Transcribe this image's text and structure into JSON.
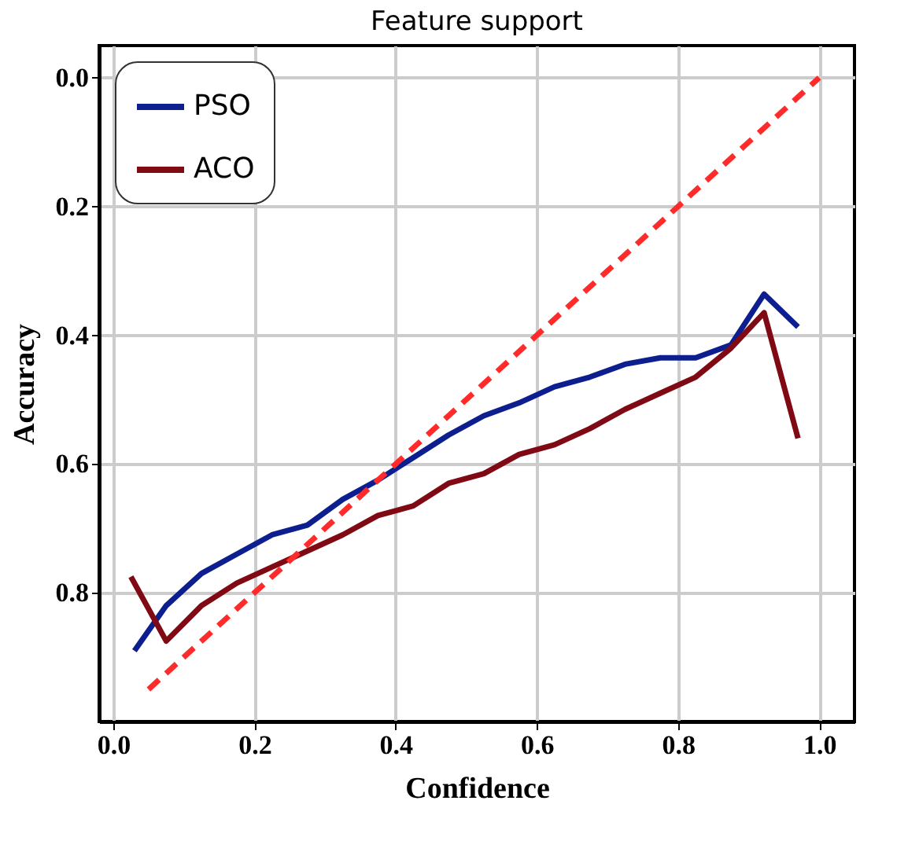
{
  "chart_data": {
    "type": "line",
    "title": "Feature support",
    "xlabel": "Confidence",
    "ylabel": "Accuracy",
    "xlim": [
      -0.02,
      1.05
    ],
    "ylim": [
      1.0,
      -0.05
    ],
    "xticks": [
      {
        "value": 0,
        "label": "0.0"
      },
      0.2,
      0.4,
      0.6,
      0.8,
      {
        "value": 1,
        "label": "1.0"
      }
    ],
    "yticks": [
      {
        "value": 0,
        "label": "0.0"
      },
      0.2,
      0.4,
      0.6,
      0.8
    ],
    "grid": true,
    "legend": "top left",
    "series": [
      {
        "name": "PSO",
        "color": "#0d1f8f",
        "line_style": "solid",
        "x": [
          0.03,
          0.075,
          0.125,
          0.175,
          0.225,
          0.275,
          0.325,
          0.375,
          0.425,
          0.475,
          0.525,
          0.575,
          0.625,
          0.675,
          0.725,
          0.775,
          0.825,
          0.875,
          0.922,
          0.97
        ],
        "values": [
          0.89,
          0.82,
          0.77,
          0.74,
          0.71,
          0.695,
          0.655,
          0.625,
          0.59,
          0.555,
          0.525,
          0.505,
          0.48,
          0.465,
          0.445,
          0.435,
          0.435,
          0.415,
          0.336,
          0.387
        ]
      },
      {
        "name": "ACO",
        "color": "#800a14",
        "line_style": "solid",
        "x": [
          0.025,
          0.075,
          0.125,
          0.175,
          0.225,
          0.275,
          0.325,
          0.375,
          0.425,
          0.475,
          0.525,
          0.575,
          0.625,
          0.675,
          0.725,
          0.775,
          0.825,
          0.875,
          0.922,
          0.97
        ],
        "values": [
          0.775,
          0.875,
          0.82,
          0.785,
          0.76,
          0.735,
          0.71,
          0.68,
          0.665,
          0.63,
          0.615,
          0.585,
          0.57,
          0.545,
          0.515,
          0.49,
          0.465,
          0.42,
          0.365,
          0.56
        ]
      },
      {
        "color": "#ff2a2a",
        "line_style": "dashed",
        "x": [
          0.05,
          1.0
        ],
        "values": [
          0.95,
          0.0
        ]
      }
    ]
  }
}
